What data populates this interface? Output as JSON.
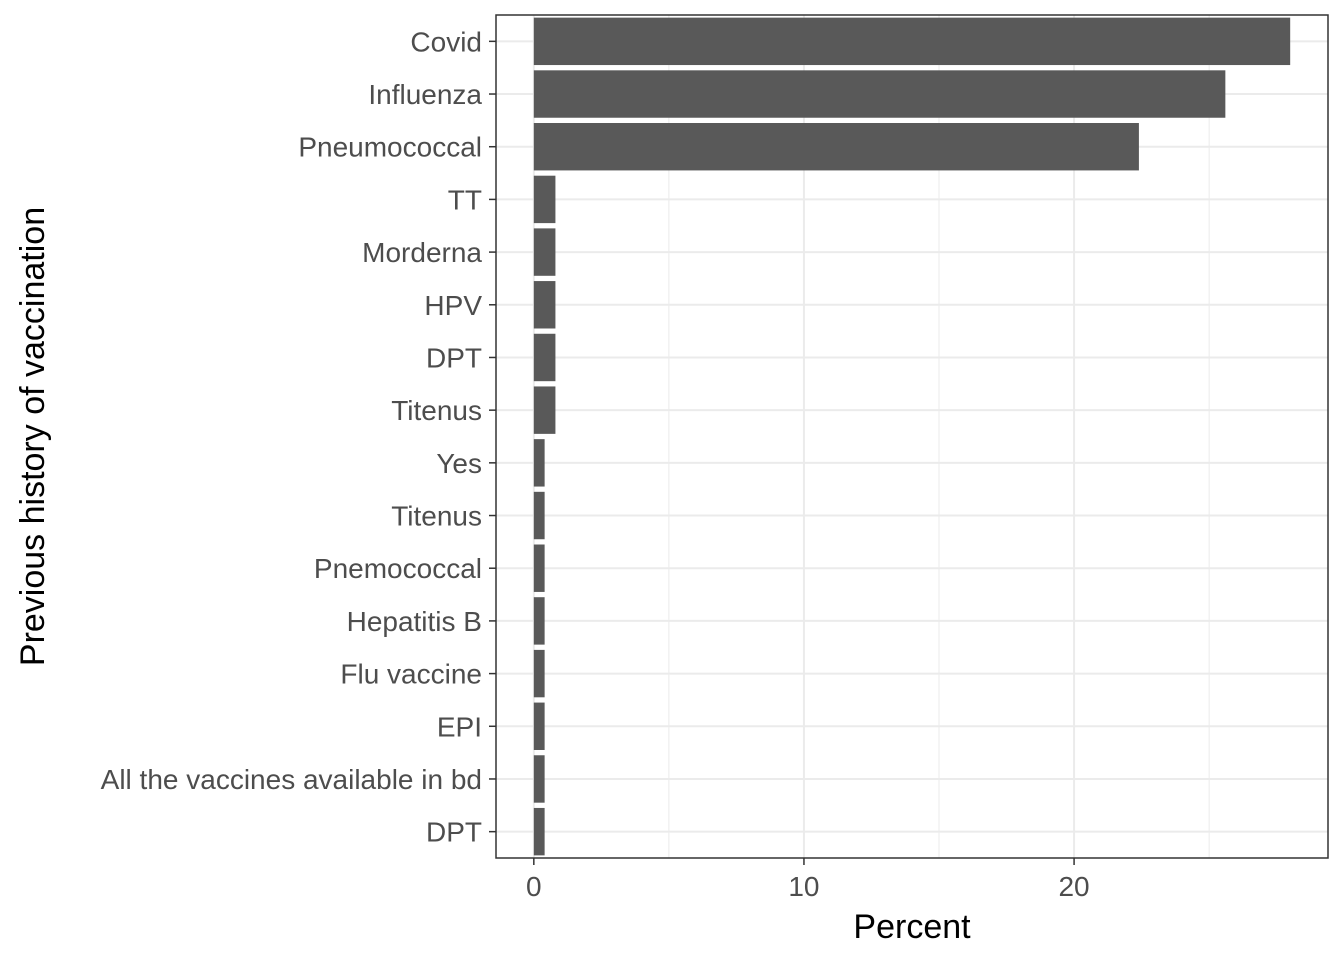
{
  "chart_data": {
    "type": "bar",
    "orientation": "horizontal",
    "categories": [
      "Covid",
      "Influenza",
      "Pneumococcal",
      "TT",
      "Morderna",
      "HPV",
      "DPT",
      "Titenus",
      "Yes",
      "Titenus",
      "Pnemococcal",
      "Hepatitis B",
      "Flu vaccine",
      "EPI",
      "All the vaccines available in bd",
      "DPT"
    ],
    "values": [
      28.0,
      25.6,
      22.4,
      0.8,
      0.8,
      0.8,
      0.8,
      0.8,
      0.4,
      0.4,
      0.4,
      0.4,
      0.4,
      0.4,
      0.4,
      0.4
    ],
    "xlabel": "Percent",
    "ylabel": "Previous history of vaccination",
    "xlim": [
      -1.4,
      29.4
    ],
    "xticks": [
      0,
      10,
      20
    ],
    "grid": true,
    "colors": {
      "bar": "#595959",
      "grid": "#ebebeb",
      "panel_border": "#333333"
    }
  }
}
